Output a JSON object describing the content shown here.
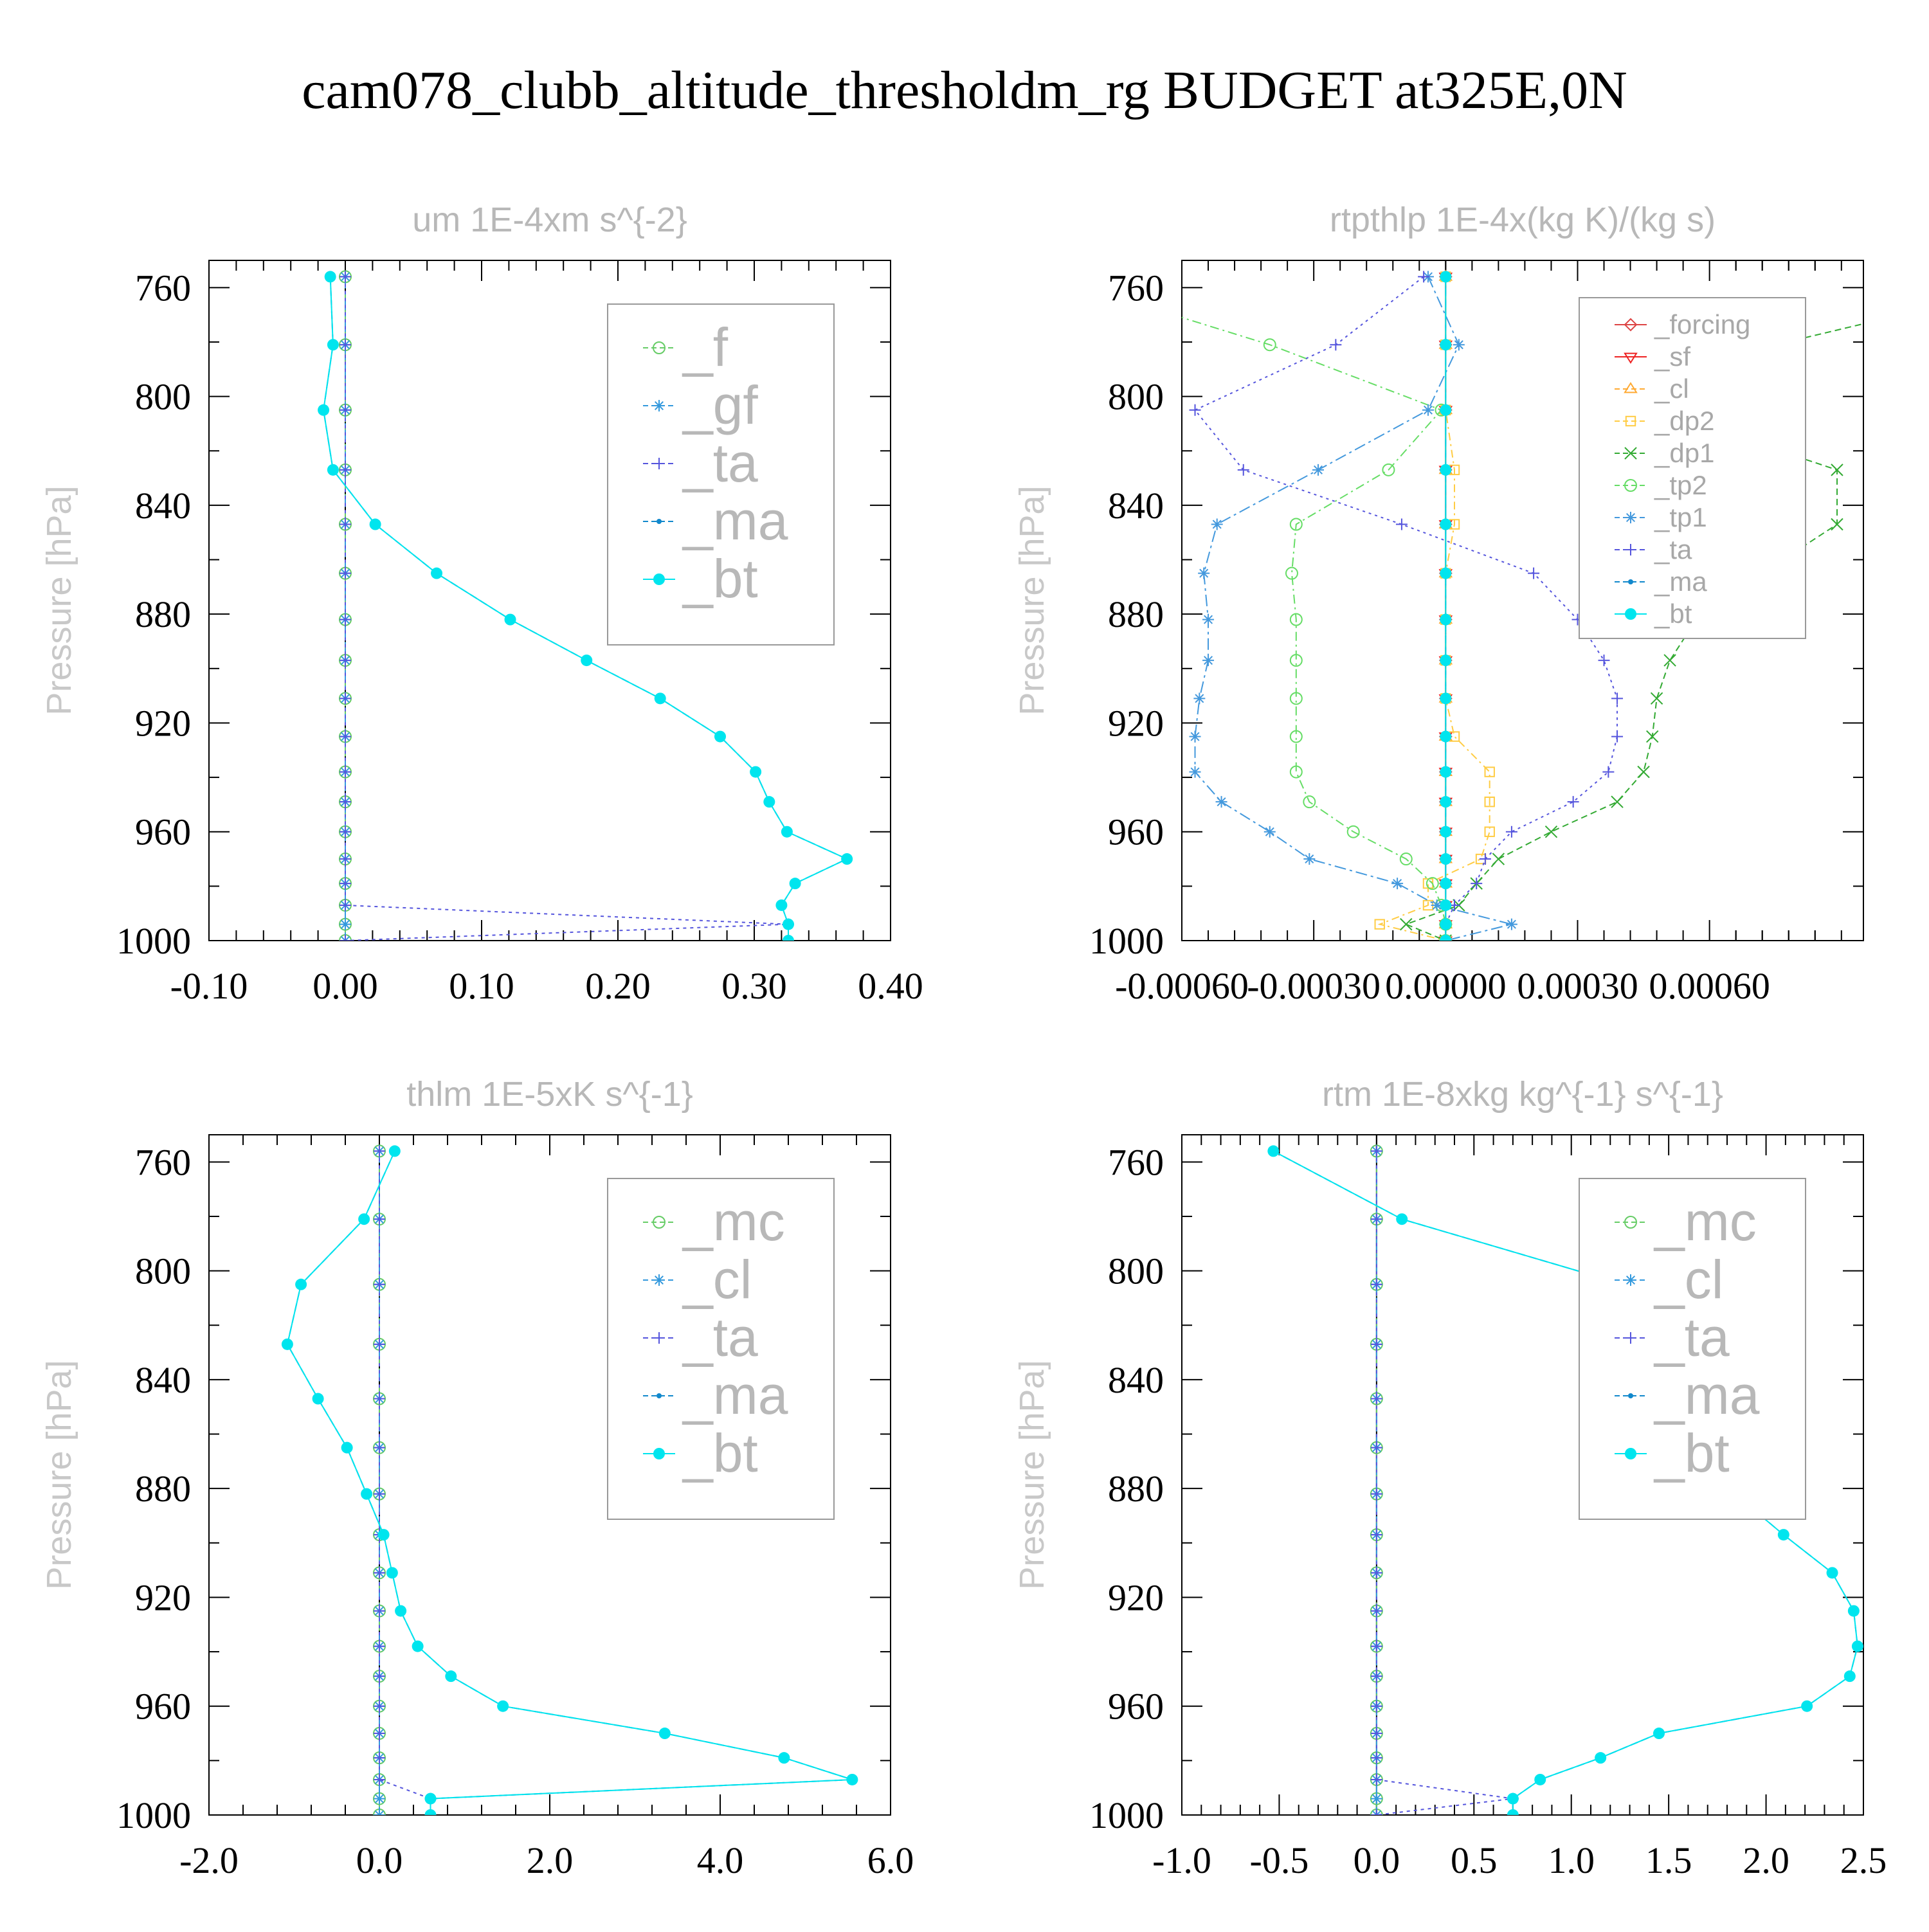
{
  "title": "cam078_clubb_altitude_thresholdm_rg  BUDGET at325E,0N",
  "colors": {
    "f": "#66cc66",
    "gf": "#3399dd",
    "ta": "#5555dd",
    "ma": "#1188cc",
    "bt": "#00e5ee",
    "forcing": "#dd4444",
    "sf": "#ee2222",
    "cl_rtp": "#ffaa33",
    "dp2": "#ffcc44",
    "dp1": "#33aa33",
    "tp2": "#66dd66",
    "tp1": "#4499dd",
    "mc": "#66cc66",
    "cl": "#3399dd"
  },
  "chart_data": [
    {
      "type": "line",
      "title": "um  1E-4xm s^{-2}",
      "ylabel": "Pressure [hPa]",
      "ylim": [
        1000,
        750
      ],
      "xlim": [
        -0.1,
        0.4
      ],
      "xticks": [
        -0.1,
        0.0,
        0.1,
        0.2,
        0.3,
        0.4
      ],
      "xtick_labels": [
        "-0.10",
        "0.00",
        "0.10",
        "0.20",
        "0.30",
        "0.40"
      ],
      "yticks": [
        760,
        800,
        840,
        880,
        920,
        960,
        1000
      ],
      "legend_style": "big",
      "legend": [
        "_f",
        "_gf",
        "_ta",
        "_ma",
        "_bt"
      ],
      "y": [
        756,
        781,
        805,
        827,
        847,
        865,
        882,
        897,
        911,
        925,
        938,
        949,
        960,
        970,
        979,
        987,
        994,
        1000
      ],
      "series": [
        {
          "name": "_f",
          "color": "#66cc66",
          "marker": "circle",
          "dash": "18,8",
          "values": [
            0,
            0,
            0,
            0,
            0,
            0,
            0,
            0,
            0,
            0,
            0,
            0,
            0,
            0,
            0,
            0,
            0,
            0
          ]
        },
        {
          "name": "_gf",
          "color": "#3399dd",
          "marker": "star",
          "dash": "18,6,4,6",
          "values": [
            0,
            0,
            0,
            0,
            0,
            0,
            0,
            0,
            0,
            0,
            0,
            0,
            0,
            0,
            0,
            0,
            0,
            0
          ]
        },
        {
          "name": "_ta",
          "color": "#5555dd",
          "marker": "plus",
          "dash": "5,6",
          "values": [
            0,
            0,
            0,
            0,
            0,
            0,
            0,
            0,
            0,
            0,
            0,
            0,
            0,
            0,
            0,
            0,
            0.325,
            0.0
          ]
        },
        {
          "name": "_ma",
          "color": "#1188cc",
          "marker": "dot",
          "dash": "12,6",
          "values": [
            -0.011,
            -0.009,
            -0.016,
            -0.009,
            0.022,
            0.067,
            0.121,
            0.177,
            0.231,
            0.275,
            0.301,
            0.311,
            0.324,
            0.368,
            0.33,
            0.32,
            0.325,
            0.325
          ]
        },
        {
          "name": "_bt",
          "color": "#00e5ee",
          "marker": "bigdot",
          "dash": "none",
          "values": [
            -0.011,
            -0.009,
            -0.016,
            -0.009,
            0.022,
            0.067,
            0.121,
            0.177,
            0.231,
            0.275,
            0.301,
            0.311,
            0.324,
            0.368,
            0.33,
            0.32,
            0.325,
            0.325
          ]
        }
      ]
    },
    {
      "type": "line",
      "title": "rtpthlp  1E-4x(kg K)/(kg s)",
      "ylabel": "Pressure [hPa]",
      "ylim": [
        1000,
        750
      ],
      "xlim": [
        -0.0006,
        0.00095
      ],
      "xticks": [
        -0.0006,
        -0.0003,
        0.0,
        0.0003,
        0.0006
      ],
      "xtick_labels": [
        "-0.00060",
        "-0.00030",
        "0.00000",
        "0.00030",
        "0.00060"
      ],
      "yticks": [
        760,
        800,
        840,
        880,
        920,
        960,
        1000
      ],
      "legend_style": "small",
      "legend": [
        "_forcing",
        "_sf",
        "_cl",
        "_dp2",
        "_dp1",
        "_tp2",
        "_tp1",
        "_ta",
        "_ma",
        "_bt"
      ],
      "y": [
        756,
        781,
        805,
        827,
        847,
        865,
        882,
        897,
        911,
        925,
        938,
        949,
        960,
        970,
        979,
        987,
        994,
        1000
      ],
      "series": [
        {
          "name": "_forcing",
          "color": "#dd4444",
          "marker": "diamond",
          "dash": "none",
          "values": [
            0,
            0,
            0,
            0,
            0,
            0,
            0,
            0,
            0,
            0,
            0,
            0,
            0,
            0,
            0,
            0,
            0,
            0
          ]
        },
        {
          "name": "_sf",
          "color": "#ee2222",
          "marker": "tri-down",
          "dash": "none",
          "values": [
            0,
            0,
            0,
            0,
            0,
            0,
            0,
            0,
            0,
            0,
            0,
            0,
            0,
            0,
            0,
            0,
            0,
            0
          ]
        },
        {
          "name": "_cl",
          "color": "#ffaa33",
          "marker": "tri-up",
          "dash": "14,6",
          "values": [
            0,
            0,
            0,
            0,
            0,
            0,
            0,
            0,
            0,
            0,
            0,
            0,
            0,
            0,
            0,
            0,
            0,
            0
          ]
        },
        {
          "name": "_dp2",
          "color": "#ffcc44",
          "marker": "square",
          "dash": "12,6,3,6",
          "values": [
            0,
            0,
            0,
            2e-05,
            2e-05,
            0,
            0,
            0,
            0,
            2e-05,
            0.0001,
            0.0001,
            0.0001,
            8e-05,
            -4e-05,
            -4e-05,
            -0.00015,
            0
          ]
        },
        {
          "name": "_dp1",
          "color": "#33aa33",
          "marker": "cross",
          "dash": "10,6",
          "values": [
            0.0014,
            0.00075,
            0.00048,
            0.00089,
            0.00089,
            0.00072,
            0.00057,
            0.00051,
            0.00048,
            0.00047,
            0.00045,
            0.00039,
            0.00024,
            0.00012,
            7e-05,
            3e-05,
            -9e-05,
            0
          ]
        },
        {
          "name": "_tp2",
          "color": "#66dd66",
          "marker": "circle",
          "dash": "14,6,3,6",
          "values": [
            -0.0009,
            -0.0004,
            -1e-05,
            -0.00013,
            -0.00034,
            -0.00035,
            -0.00034,
            -0.00034,
            -0.00034,
            -0.00034,
            -0.00034,
            -0.00031,
            -0.00021,
            -9e-05,
            -3e-05,
            -1e-05,
            0,
            0
          ]
        },
        {
          "name": "_tp1",
          "color": "#4499dd",
          "marker": "star",
          "dash": "18,6,4,6",
          "values": [
            -4e-05,
            3e-05,
            -4e-05,
            -0.00029,
            -0.00052,
            -0.00055,
            -0.00054,
            -0.00054,
            -0.00056,
            -0.00057,
            -0.00057,
            -0.00051,
            -0.0004,
            -0.00031,
            -0.00011,
            -2e-05,
            0.00015,
            0
          ]
        },
        {
          "name": "_ta",
          "color": "#5555dd",
          "marker": "plus",
          "dash": "4,6",
          "values": [
            -5e-05,
            -0.00025,
            -0.00057,
            -0.00046,
            -0.0001,
            0.0002,
            0.0003,
            0.00036,
            0.00039,
            0.00039,
            0.00037,
            0.00029,
            0.00015,
            9e-05,
            7e-05,
            2e-05,
            0,
            0
          ]
        },
        {
          "name": "_ma",
          "color": "#1188cc",
          "marker": "dot",
          "dash": "12,6",
          "values": [
            0,
            0,
            0,
            0,
            0,
            0,
            0,
            0,
            0,
            0,
            0,
            0,
            0,
            0,
            0,
            0,
            0,
            0
          ]
        },
        {
          "name": "_bt",
          "color": "#00e5ee",
          "marker": "bigdot",
          "dash": "none",
          "values": [
            0,
            0,
            0,
            0,
            0,
            0,
            0,
            0,
            0,
            0,
            0,
            0,
            0,
            0,
            0,
            0,
            0,
            0
          ]
        }
      ]
    },
    {
      "type": "line",
      "title": "thlm  1E-5xK s^{-1}",
      "ylabel": "Pressure [hPa]",
      "ylim": [
        1000,
        750
      ],
      "xlim": [
        -2.0,
        6.0
      ],
      "xticks": [
        -2,
        0,
        2,
        4,
        6
      ],
      "xtick_labels": [
        "-2.0",
        "0.0",
        "2.0",
        "4.0",
        "6.0"
      ],
      "yticks": [
        760,
        800,
        840,
        880,
        920,
        960,
        1000
      ],
      "legend_style": "big",
      "legend": [
        "_mc",
        "_cl",
        "_ta",
        "_ma",
        "_bt"
      ],
      "y": [
        756,
        781,
        805,
        827,
        847,
        865,
        882,
        897,
        911,
        925,
        938,
        949,
        960,
        970,
        979,
        987,
        994,
        1000
      ],
      "series": [
        {
          "name": "_mc",
          "color": "#66cc66",
          "marker": "circle",
          "dash": "18,8",
          "values": [
            0,
            0,
            0,
            0,
            0,
            0,
            0,
            0,
            0,
            0,
            0,
            0,
            0,
            0,
            0,
            0,
            0,
            0
          ]
        },
        {
          "name": "_cl",
          "color": "#3399dd",
          "marker": "star",
          "dash": "18,6,4,6",
          "values": [
            0,
            0,
            0,
            0,
            0,
            0,
            0,
            0,
            0,
            0,
            0,
            0,
            0,
            0,
            0,
            0,
            0,
            0
          ]
        },
        {
          "name": "_ta",
          "color": "#5555dd",
          "marker": "plus",
          "dash": "5,6",
          "values": [
            0,
            0,
            0,
            0,
            0,
            0,
            0,
            0,
            0,
            0,
            0,
            0,
            0,
            0,
            0,
            0,
            0.6,
            0.6
          ]
        },
        {
          "name": "_ma",
          "color": "#1188cc",
          "marker": "dot",
          "dash": "12,6",
          "values": [
            0.18,
            -0.18,
            -0.92,
            -1.08,
            -0.72,
            -0.38,
            -0.15,
            0.05,
            0.15,
            0.25,
            0.45,
            0.84,
            1.45,
            3.35,
            4.75,
            5.55,
            0.6,
            0.6
          ]
        },
        {
          "name": "_bt",
          "color": "#00e5ee",
          "marker": "bigdot",
          "dash": "none",
          "values": [
            0.18,
            -0.18,
            -0.92,
            -1.08,
            -0.72,
            -0.38,
            -0.15,
            0.05,
            0.15,
            0.25,
            0.45,
            0.84,
            1.45,
            3.35,
            4.75,
            5.55,
            0.6,
            0.6
          ]
        }
      ]
    },
    {
      "type": "line",
      "title": "rtm  1E-8xkg kg^{-1} s^{-1}",
      "ylabel": "Pressure [hPa]",
      "ylim": [
        1000,
        750
      ],
      "xlim": [
        -1.0,
        2.5
      ],
      "xticks": [
        -1.0,
        -0.5,
        0.0,
        0.5,
        1.0,
        1.5,
        2.0,
        2.5
      ],
      "xtick_labels": [
        "-1.0",
        "-0.5",
        "0.0",
        "0.5",
        "1.0",
        "1.5",
        "2.0",
        "2.5"
      ],
      "yticks": [
        760,
        800,
        840,
        880,
        920,
        960,
        1000
      ],
      "legend_style": "big",
      "legend": [
        "_mc",
        "_cl",
        "_ta",
        "_ma",
        "_bt"
      ],
      "y": [
        756,
        781,
        805,
        827,
        847,
        865,
        882,
        897,
        911,
        925,
        938,
        949,
        960,
        970,
        979,
        987,
        994,
        1000
      ],
      "series": [
        {
          "name": "_mc",
          "color": "#66cc66",
          "marker": "circle",
          "dash": "18,8",
          "values": [
            0,
            0,
            0,
            0,
            0,
            0,
            0,
            0,
            0,
            0,
            0,
            0,
            0,
            0,
            0,
            0,
            0,
            0
          ]
        },
        {
          "name": "_cl",
          "color": "#3399dd",
          "marker": "star",
          "dash": "18,6,4,6",
          "values": [
            0,
            0,
            0,
            0,
            0,
            0,
            0,
            0,
            0,
            0,
            0,
            0,
            0,
            0,
            0,
            0,
            0,
            0
          ]
        },
        {
          "name": "_ta",
          "color": "#5555dd",
          "marker": "plus",
          "dash": "5,6",
          "values": [
            0,
            0,
            0,
            0,
            0,
            0,
            0,
            0,
            0,
            0,
            0,
            0,
            0,
            0,
            0,
            0,
            0.7,
            0.0
          ]
        },
        {
          "name": "_ma",
          "color": "#1188cc",
          "marker": "dot",
          "dash": "12,6",
          "values": [
            -0.53,
            0.13,
            1.27,
            1.93,
            1.84,
            1.79,
            1.84,
            2.09,
            2.34,
            2.45,
            2.47,
            2.43,
            2.21,
            1.45,
            1.15,
            0.84,
            0.7,
            0.7
          ]
        },
        {
          "name": "_bt",
          "color": "#00e5ee",
          "marker": "bigdot",
          "dash": "none",
          "values": [
            -0.53,
            0.13,
            1.27,
            1.93,
            1.84,
            1.79,
            1.84,
            2.09,
            2.34,
            2.45,
            2.47,
            2.43,
            2.21,
            1.45,
            1.15,
            0.84,
            0.7,
            0.7
          ]
        }
      ]
    }
  ]
}
